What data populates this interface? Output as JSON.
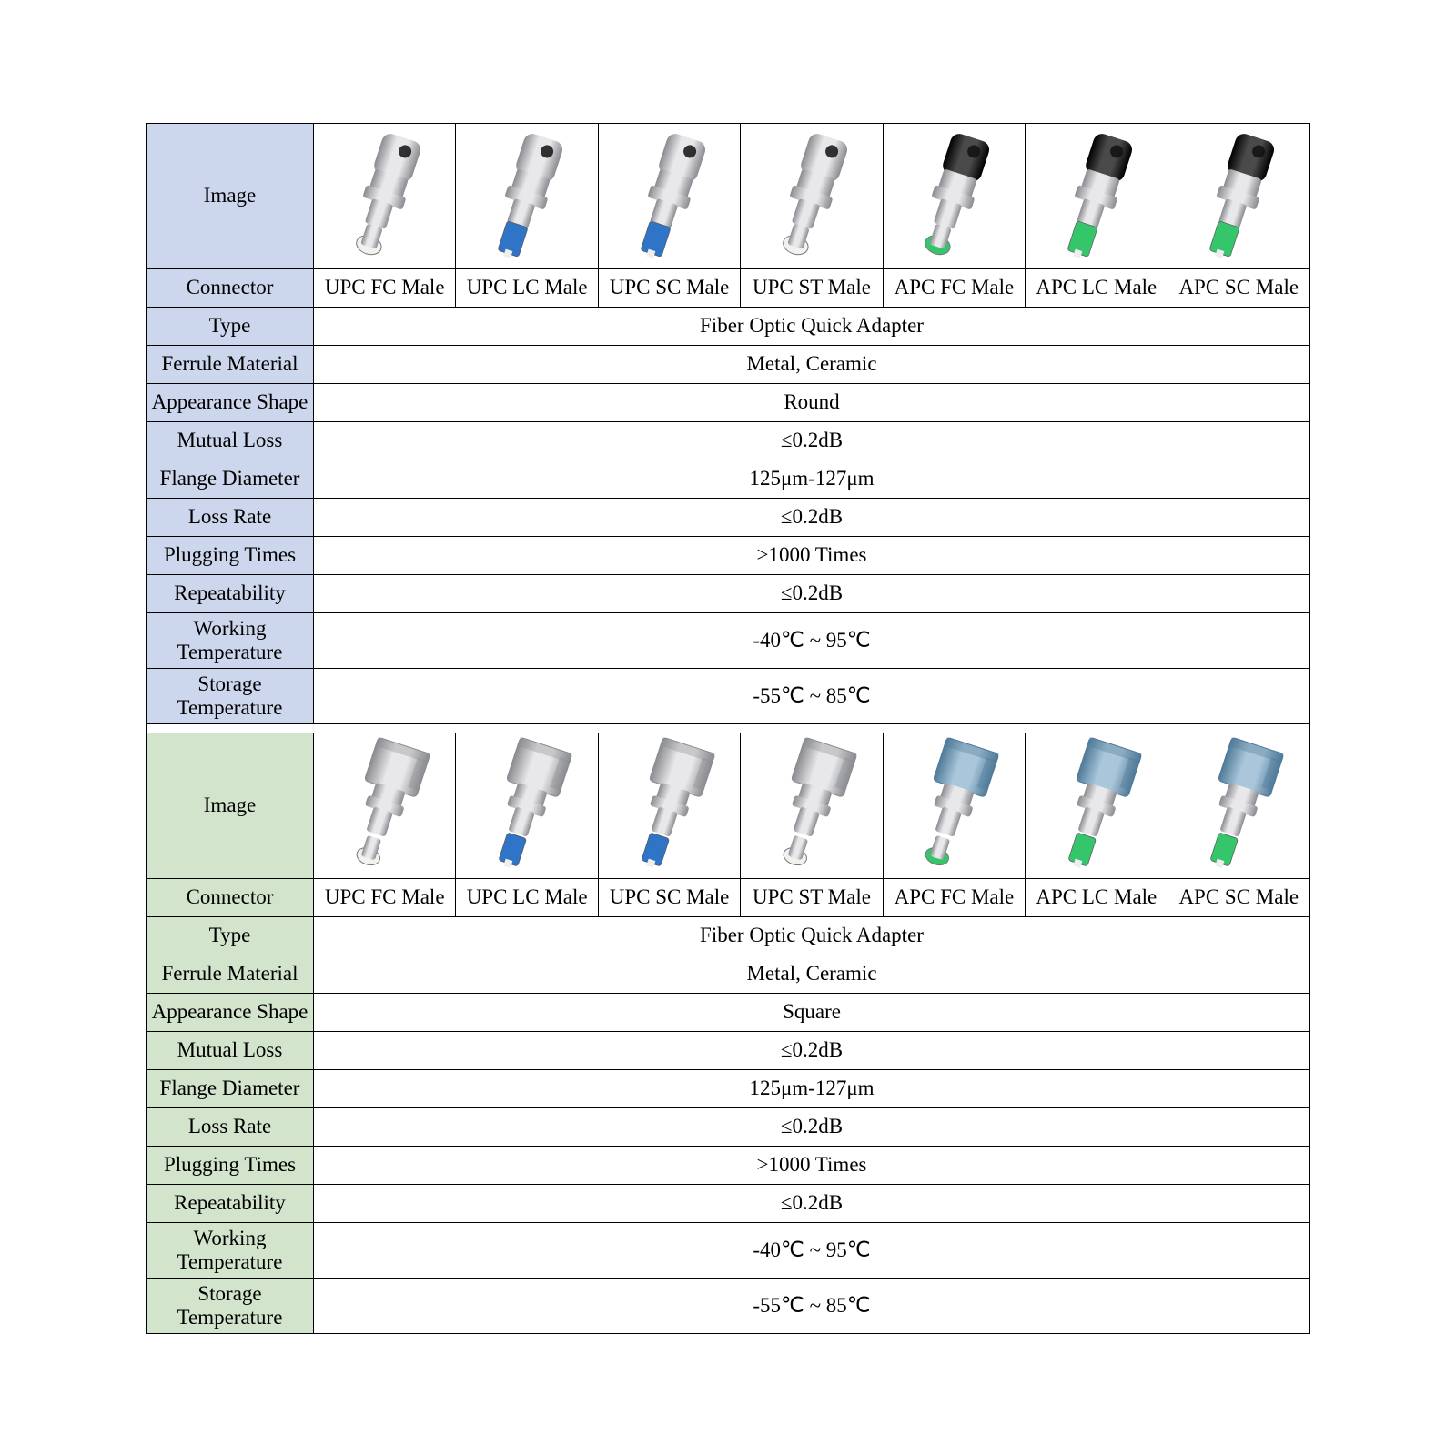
{
  "labels": {
    "image": "Image",
    "connector": "Connector",
    "type": "Type",
    "ferrule": "Ferrule Material",
    "shape": "Appearance Shape",
    "mutual": "Mutual Loss",
    "flange": "Flange Diameter",
    "lossrate": "Loss Rate",
    "plugging": "Plugging Times",
    "repeat": "Repeatability",
    "worktemp": "Working Temperature",
    "stortemp": "Storage Temperature"
  },
  "connectors": [
    "UPC FC Male",
    "UPC LC Male",
    "UPC SC Male",
    "UPC ST Male",
    "APC FC Male",
    "APC LC Male",
    "APC SC Male"
  ],
  "section1": {
    "label_bg": "#ccd6ec",
    "body_color_set": [
      "silver",
      "silver",
      "silver",
      "silver",
      "black",
      "black",
      "black"
    ],
    "tip_color_set": [
      "white",
      "blue",
      "blue",
      "white",
      "green",
      "green",
      "green"
    ],
    "type": "Fiber Optic Quick Adapter",
    "ferrule": "Metal, Ceramic",
    "shape": "Round",
    "mutual": "≤0.2dB",
    "flange": "125μm-127μm",
    "lossrate": "≤0.2dB",
    "plugging": ">1000 Times",
    "repeat": "≤0.2dB",
    "worktemp": "-40℃ ~ 95℃",
    "stortemp": "-55℃ ~ 85℃"
  },
  "section2": {
    "label_bg": "#d2e4cc",
    "body_color_set": [
      "silver",
      "silver",
      "silver",
      "silver",
      "steel",
      "steel",
      "steel"
    ],
    "tip_color_set": [
      "white",
      "blue",
      "blue",
      "white",
      "green",
      "green",
      "green"
    ],
    "type": "Fiber Optic Quick Adapter",
    "ferrule": "Metal, Ceramic",
    "shape": "Square",
    "mutual": "≤0.2dB",
    "flange": "125μm-127μm",
    "lossrate": "≤0.2dB",
    "plugging": ">1000 Times",
    "repeat": "≤0.2dB",
    "worktemp": "-40℃ ~ 95℃",
    "stortemp": "-55℃ ~ 85℃"
  },
  "palette": {
    "silver": {
      "light": "#e8e8ea",
      "mid": "#c8c9cd",
      "dark": "#8a8b90"
    },
    "black": {
      "light": "#4a4a4a",
      "mid": "#222222",
      "dark": "#000000"
    },
    "steel": {
      "light": "#a9c6da",
      "mid": "#7fa8c4",
      "dark": "#4f7a99"
    },
    "white": "#f3f1ee",
    "blue": "#2f74c7",
    "green": "#35c66b"
  },
  "icon_size": {
    "w": 120,
    "h": 150
  }
}
